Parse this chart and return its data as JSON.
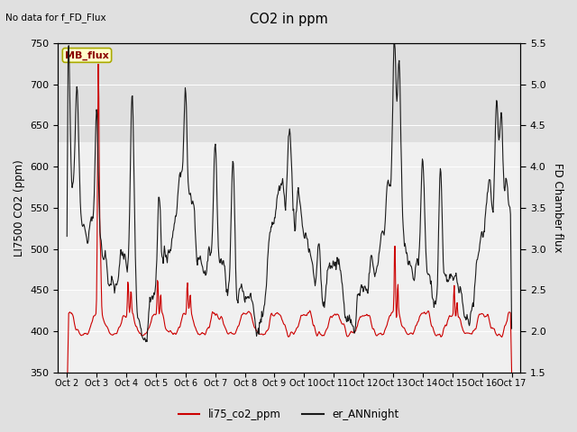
{
  "title": "CO2 in ppm",
  "top_left_text": "No data for f_FD_Flux",
  "ylabel_left": "LI7500 CO2 (ppm)",
  "ylabel_right": "FD Chamber flux",
  "ylim_left": [
    350,
    750
  ],
  "ylim_right": [
    1.5,
    5.5
  ],
  "yticks_left": [
    350,
    400,
    450,
    500,
    550,
    600,
    650,
    700,
    750
  ],
  "yticks_right": [
    1.5,
    2.0,
    2.5,
    3.0,
    3.5,
    4.0,
    4.5,
    5.0,
    5.5
  ],
  "x_tick_labels": [
    "Oct 2",
    "Oct 3",
    "Oct 4",
    "Oct 5",
    "Oct 6",
    "Oct 7",
    "Oct 8",
    "Oct 9",
    "Oct 10",
    "Oct 11",
    "Oct 12",
    "Oct 13",
    "Oct 14",
    "Oct 15",
    "Oct 16",
    "Oct 17"
  ],
  "legend_label1": "li75_co2_ppm",
  "legend_label2": "er_ANNnight",
  "legend_label_mb": "MB_flux",
  "line1_color": "#cc0000",
  "line2_color": "#1a1a1a",
  "background_color": "#e0e0e0",
  "plot_bg_color": "#f0f0f0",
  "shaded_band_color": "#d8d8d8",
  "mb_box_color": "#ffffcc",
  "mb_box_edge": "#aaaa00"
}
